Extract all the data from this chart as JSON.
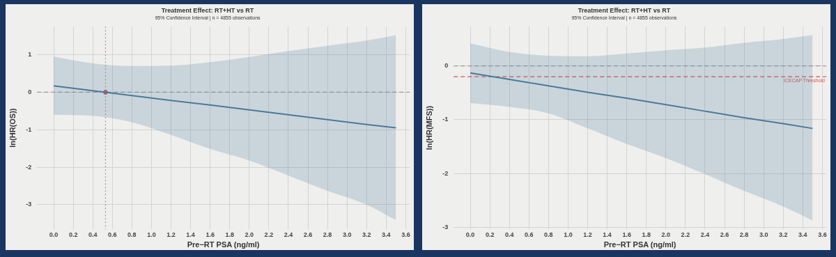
{
  "chart_data": [
    {
      "type": "line",
      "title": "Treatment Effect: RT+HT vs RT",
      "subtitle": "95% Confidence Interval | n = 4855 observations",
      "xlabel": "Pre−RT PSA (ng/ml)",
      "ylabel": "ln(HR(OS))",
      "xlim": [
        -0.17,
        3.64
      ],
      "ylim": [
        -3.65,
        1.75
      ],
      "xticks": [
        {
          "value": 0,
          "label": "0.0"
        },
        {
          "value": 0.2,
          "label": "0.2"
        },
        {
          "value": 0.4,
          "label": "0.4"
        },
        {
          "value": 0.6,
          "label": "0.6"
        },
        {
          "value": 0.8,
          "label": "0.8"
        },
        {
          "value": 1,
          "label": "1.0"
        },
        {
          "value": 1.2,
          "label": "1.2"
        },
        {
          "value": 1.4,
          "label": "1.4"
        },
        {
          "value": 1.6,
          "label": "1.6"
        },
        {
          "value": 1.8,
          "label": "1.8"
        },
        {
          "value": 2,
          "label": "2.0"
        },
        {
          "value": 2.2,
          "label": "2.2"
        },
        {
          "value": 2.4,
          "label": "2.4"
        },
        {
          "value": 2.6,
          "label": "2.6"
        },
        {
          "value": 2.8,
          "label": "2.8"
        },
        {
          "value": 3,
          "label": "3.0"
        },
        {
          "value": 3.2,
          "label": "3.2"
        },
        {
          "value": 3.4,
          "label": "3.4"
        },
        {
          "value": 3.6,
          "label": "3.6"
        }
      ],
      "yticks": [
        -3,
        -2,
        -1,
        0,
        1
      ],
      "grid": true,
      "legend": false,
      "series": [
        {
          "color": "#4a7a9b",
          "marker": "none",
          "x": [
            0,
            0.4,
            0.8,
            1.2,
            1.6,
            2.0,
            2.4,
            2.8,
            3.2,
            3.5
          ],
          "values": [
            0.17,
            0.04,
            -0.09,
            -0.22,
            -0.34,
            -0.47,
            -0.6,
            -0.73,
            -0.86,
            -0.95
          ],
          "lower": [
            -0.6,
            -0.63,
            -0.8,
            -1.14,
            -1.51,
            -1.82,
            -2.22,
            -2.63,
            -3.0,
            -3.41
          ],
          "upper": [
            0.95,
            0.77,
            0.7,
            0.71,
            0.8,
            0.94,
            1.1,
            1.24,
            1.38,
            1.52
          ]
        },
        {
          "type": "scatter",
          "color": "#d9534f",
          "marker": "circle",
          "x": [
            0.53
          ],
          "values": [
            0
          ]
        }
      ],
      "ref_lines": [
        {
          "axis": "y",
          "value": 0,
          "color": "#999999",
          "line_style": "dashed"
        },
        {
          "axis": "x",
          "value": 0.53,
          "color": "#e07a7a",
          "line_style": "dotted"
        }
      ]
    },
    {
      "type": "line",
      "title": "Treatment Effect: RT+HT vs RT",
      "subtitle": "95% Confidence Interval | n = 4855 observations",
      "xlabel": "Pre−RT PSA (ng/ml)",
      "ylabel": "ln(HR(MFS))",
      "xlim": [
        -0.17,
        3.64
      ],
      "ylim": [
        -3.03,
        0.73
      ],
      "xticks": [
        {
          "value": 0,
          "label": "0.0"
        },
        {
          "value": 0.2,
          "label": "0.2"
        },
        {
          "value": 0.4,
          "label": "0.4"
        },
        {
          "value": 0.6,
          "label": "0.6"
        },
        {
          "value": 0.8,
          "label": "0.8"
        },
        {
          "value": 1,
          "label": "1.0"
        },
        {
          "value": 1.2,
          "label": "1.2"
        },
        {
          "value": 1.4,
          "label": "1.4"
        },
        {
          "value": 1.6,
          "label": "1.6"
        },
        {
          "value": 1.8,
          "label": "1.8"
        },
        {
          "value": 2,
          "label": "2.0"
        },
        {
          "value": 2.2,
          "label": "2.2"
        },
        {
          "value": 2.4,
          "label": "2.4"
        },
        {
          "value": 2.6,
          "label": "2.6"
        },
        {
          "value": 2.8,
          "label": "2.8"
        },
        {
          "value": 3,
          "label": "3.0"
        },
        {
          "value": 3.2,
          "label": "3.2"
        },
        {
          "value": 3.4,
          "label": "3.4"
        },
        {
          "value": 3.6,
          "label": "3.6"
        }
      ],
      "yticks": [
        -3,
        -2,
        -1,
        0
      ],
      "grid": true,
      "legend": false,
      "series": [
        {
          "color": "#4a7a9b",
          "marker": "none",
          "x": [
            0,
            0.4,
            0.8,
            1.2,
            1.6,
            2.0,
            2.4,
            2.8,
            3.2,
            3.5
          ],
          "values": [
            -0.13,
            -0.25,
            -0.37,
            -0.49,
            -0.6,
            -0.72,
            -0.84,
            -0.96,
            -1.07,
            -1.16
          ],
          "lower": [
            -0.69,
            -0.76,
            -0.88,
            -1.16,
            -1.45,
            -1.71,
            -2.01,
            -2.32,
            -2.61,
            -2.87
          ],
          "upper": [
            0.42,
            0.26,
            0.19,
            0.18,
            0.23,
            0.29,
            0.34,
            0.43,
            0.5,
            0.57
          ]
        }
      ],
      "ref_lines": [
        {
          "axis": "y",
          "value": 0,
          "color": "#999999",
          "line_style": "dashed"
        },
        {
          "axis": "y",
          "value": -0.2,
          "label": "ICECAP Threshold",
          "color": "#d9534f",
          "line_style": "dashed"
        }
      ]
    }
  ]
}
